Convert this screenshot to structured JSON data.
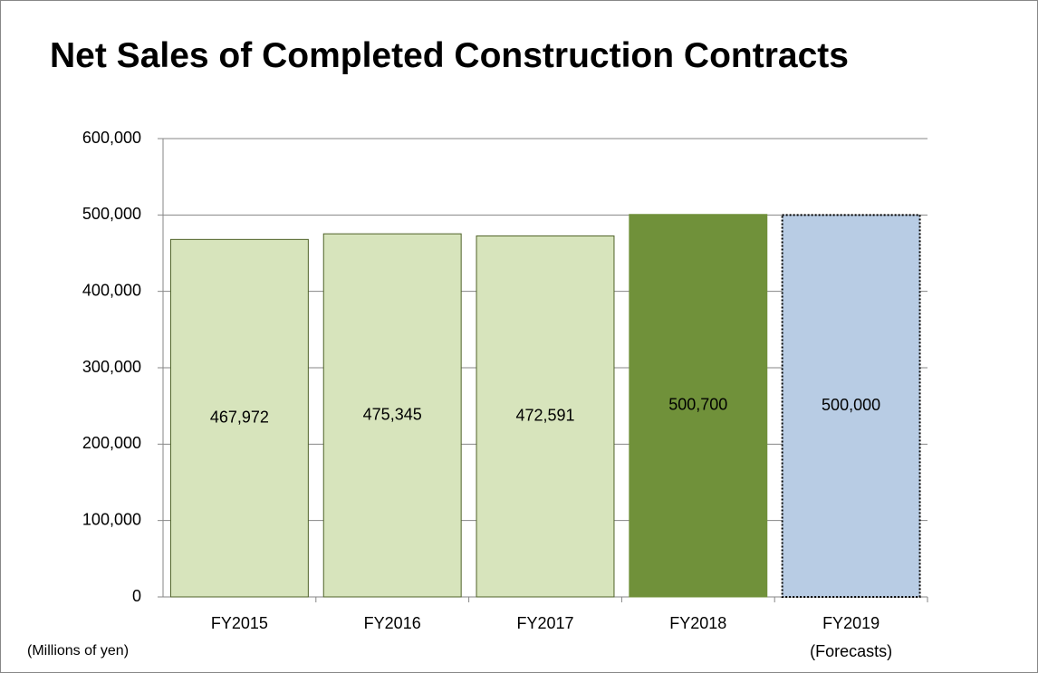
{
  "chart_data": {
    "type": "bar",
    "title": "Net Sales of Completed Construction Contracts",
    "y_axis_label": "(Millions of yen)",
    "forecast_label": "(Forecasts)",
    "categories": [
      "FY2015",
      "FY2016",
      "FY2017",
      "FY2018",
      "FY2019"
    ],
    "values": [
      467972,
      475345,
      472591,
      500700,
      500000
    ],
    "value_labels": [
      "467,972",
      "475,345",
      "472,591",
      "500,700",
      "500,000"
    ],
    "colors": [
      "#d7e4bc",
      "#d7e4bc",
      "#d7e4bc",
      "#70913a",
      "#b8cce4"
    ],
    "border_colors": [
      "#4f6228",
      "#4f6228",
      "#4f6228",
      "#70913a",
      "#000000"
    ],
    "border_styles": [
      "solid",
      "solid",
      "solid",
      "solid",
      "dotted"
    ],
    "ylim": [
      0,
      600000
    ],
    "yticks": [
      {
        "value": 0,
        "label": "0"
      },
      {
        "value": 100000,
        "label": "100,000"
      },
      {
        "value": 200000,
        "label": "200,000"
      },
      {
        "value": 300000,
        "label": "300,000"
      },
      {
        "value": 400000,
        "label": "400,000"
      },
      {
        "value": 500000,
        "label": "500,000"
      },
      {
        "value": 600000,
        "label": "600,000"
      }
    ],
    "grid": true
  }
}
